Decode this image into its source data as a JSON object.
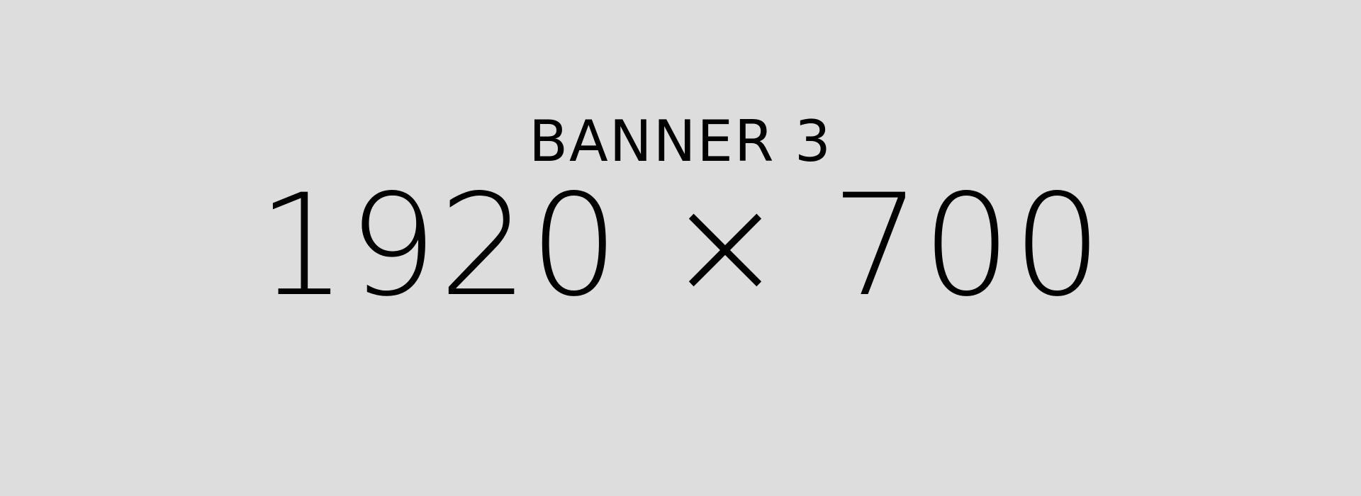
{
  "banner": {
    "title": "BANNER 3",
    "dimensions": "1920 × 700",
    "background_color": "#dddddd",
    "text_color": "#000000"
  }
}
